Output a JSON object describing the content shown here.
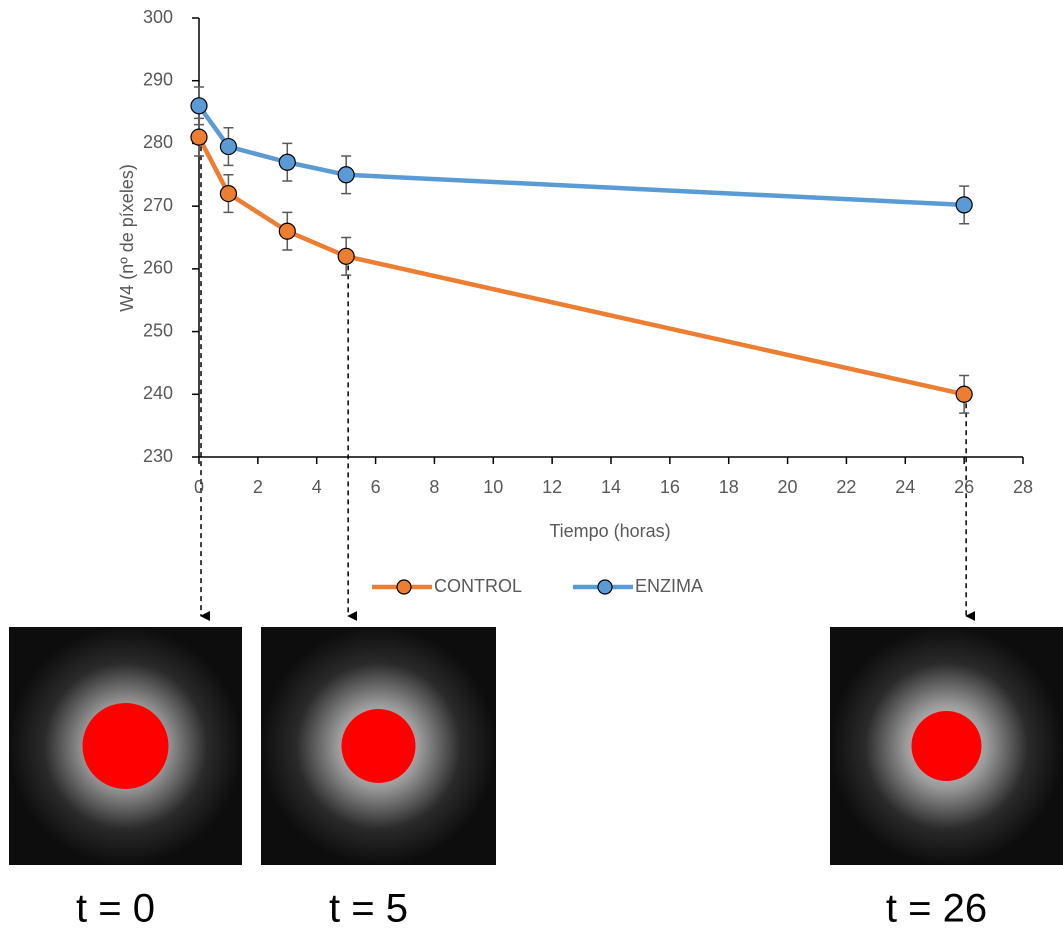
{
  "chart_data": {
    "type": "line",
    "xlabel": "Tiempo (horas)",
    "ylabel": "W4 (nº de píxeles)",
    "x": [
      0,
      1,
      3,
      5,
      26
    ],
    "series": [
      {
        "name": "CONTROL",
        "color": "#ED7D31",
        "values": [
          281,
          272,
          266,
          262,
          240
        ],
        "errors": [
          3,
          3,
          3,
          3,
          3
        ]
      },
      {
        "name": "ENZIMA",
        "color": "#5B9BD5",
        "values": [
          286,
          279.5,
          277,
          275,
          270.2
        ],
        "errors": [
          3,
          3,
          3,
          3,
          3
        ]
      }
    ],
    "xlim": [
      0,
      28
    ],
    "xticks": [
      0,
      2,
      4,
      6,
      8,
      10,
      12,
      14,
      16,
      18,
      20,
      22,
      24,
      26,
      28
    ],
    "ylim": [
      230,
      300
    ],
    "yticks": [
      230,
      240,
      250,
      260,
      270,
      280,
      290,
      300
    ],
    "legend": "bottom",
    "panels": [
      {
        "label": "t = 0"
      },
      {
        "label": "t = 5"
      },
      {
        "label": "t = 26"
      }
    ]
  }
}
